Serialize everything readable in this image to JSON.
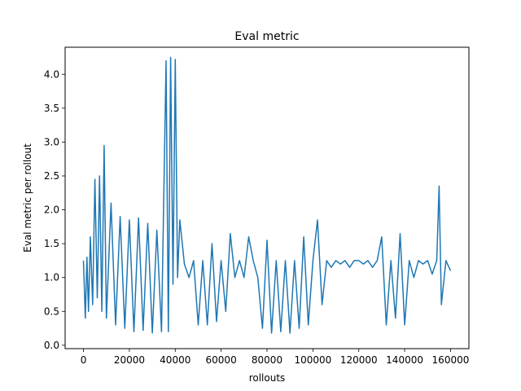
{
  "chart_data": {
    "type": "line",
    "title": "Eval metric",
    "xlabel": "rollouts",
    "ylabel": "Eval metric per rollout",
    "xlim": [
      -8000,
      168000
    ],
    "ylim": [
      -0.05,
      4.4
    ],
    "xticks": [
      0,
      20000,
      40000,
      60000,
      80000,
      100000,
      120000,
      140000,
      160000
    ],
    "yticks": [
      0.0,
      0.5,
      1.0,
      1.5,
      2.0,
      2.5,
      3.0,
      3.5,
      4.0
    ],
    "xtick_labels": [
      "0",
      "20000",
      "40000",
      "60000",
      "80000",
      "100000",
      "120000",
      "140000",
      "160000"
    ],
    "ytick_labels": [
      "0.0",
      "0.5",
      "1.0",
      "1.5",
      "2.0",
      "2.5",
      "3.0",
      "3.5",
      "4.0"
    ],
    "grid": false,
    "color": "#1f77b4",
    "series": [
      {
        "x": [
          0,
          800,
          1500,
          2200,
          3000,
          4000,
          5000,
          6000,
          7000,
          8000,
          9000,
          10000,
          12000,
          14000,
          16000,
          18000,
          20000,
          22000,
          24000,
          26000,
          28000,
          30000,
          32000,
          34000,
          36000,
          37000,
          38000,
          39000,
          40000,
          41000,
          42000,
          44000,
          46000,
          48000,
          50000,
          52000,
          54000,
          56000,
          58000,
          60000,
          62000,
          64000,
          66000,
          68000,
          70000,
          72000,
          74000,
          76000,
          78000,
          80000,
          82000,
          84000,
          86000,
          88000,
          90000,
          92000,
          94000,
          96000,
          98000,
          100000,
          102000,
          104000,
          106000,
          108000,
          110000,
          112000,
          114000,
          116000,
          118000,
          120000,
          122000,
          124000,
          126000,
          128000,
          130000,
          132000,
          134000,
          136000,
          138000,
          140000,
          142000,
          144000,
          146000,
          148000,
          150000,
          152000,
          154000,
          155000,
          156000,
          158000,
          160000
        ],
        "y": [
          1.25,
          0.4,
          1.3,
          0.5,
          1.6,
          0.6,
          2.45,
          0.7,
          2.5,
          0.5,
          2.95,
          0.4,
          2.1,
          0.3,
          1.9,
          0.25,
          1.85,
          0.2,
          1.88,
          0.22,
          1.8,
          0.18,
          1.7,
          0.2,
          4.2,
          0.2,
          4.25,
          0.9,
          4.22,
          1.0,
          1.85,
          1.2,
          1.0,
          1.25,
          0.3,
          1.25,
          0.3,
          1.5,
          0.35,
          1.25,
          0.5,
          1.65,
          1.0,
          1.25,
          1.0,
          1.6,
          1.25,
          1.0,
          0.25,
          1.55,
          0.18,
          1.25,
          0.2,
          1.25,
          0.18,
          1.25,
          0.25,
          1.6,
          0.3,
          1.25,
          1.85,
          0.6,
          1.25,
          1.15,
          1.25,
          1.2,
          1.25,
          1.15,
          1.25,
          1.25,
          1.2,
          1.25,
          1.15,
          1.25,
          1.6,
          0.3,
          1.25,
          0.4,
          1.65,
          0.3,
          1.25,
          1.0,
          1.25,
          1.2,
          1.25,
          1.05,
          1.25,
          2.35,
          0.6,
          1.25,
          1.1
        ]
      }
    ]
  }
}
